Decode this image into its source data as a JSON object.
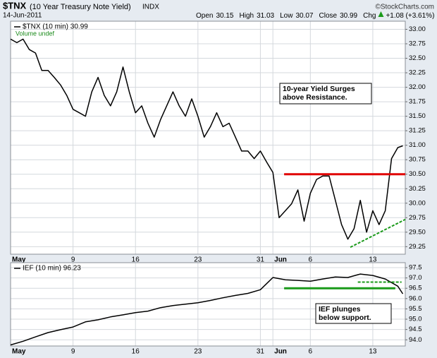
{
  "header": {
    "symbol": "$TNX",
    "name": "(10 Year Treasury Note Yield)",
    "exchange": "INDX",
    "copyright": "©StockCharts.com",
    "date": "14-Jun-2011",
    "stats": [
      {
        "label": "Open",
        "value": "30.15"
      },
      {
        "label": "High",
        "value": "31.03"
      },
      {
        "label": "Low",
        "value": "30.07"
      },
      {
        "label": "Close",
        "value": "30.99"
      },
      {
        "label": "Chg",
        "value": "+1.08 (+3.61%)"
      }
    ]
  },
  "chart_data": [
    {
      "type": "line",
      "x": [
        0,
        0.5,
        1,
        1.5,
        2,
        2.5,
        3,
        3.5,
        4,
        4.5,
        5,
        5.5,
        6,
        6.5,
        7,
        7.5,
        8,
        8.5,
        9,
        9.5,
        10,
        10.5,
        11,
        11.5,
        12,
        12.5,
        13,
        13.5,
        14,
        14.5,
        15,
        15.5,
        16,
        16.5,
        17,
        17.5,
        18,
        18.5,
        19,
        19.5,
        20,
        20.5,
        21,
        21.5,
        22,
        22.5,
        23,
        23.5,
        24,
        24.5,
        25,
        25.5,
        26,
        26.5,
        27,
        27.5,
        28,
        28.5,
        29,
        29.5,
        30,
        30.5,
        31,
        31.4
      ],
      "series": [
        {
          "name": "$TNX (10 min) 30.99",
          "color": "#000000",
          "values": [
            32.83,
            32.77,
            32.83,
            32.65,
            32.59,
            32.29,
            32.29,
            32.17,
            32.04,
            31.86,
            31.62,
            31.56,
            31.5,
            31.92,
            32.17,
            31.86,
            31.68,
            31.92,
            32.35,
            31.92,
            31.56,
            31.68,
            31.38,
            31.14,
            31.44,
            31.68,
            31.92,
            31.68,
            31.5,
            31.8,
            31.5,
            31.14,
            31.32,
            31.56,
            31.32,
            31.38,
            31.14,
            30.9,
            30.9,
            30.77,
            30.9,
            30.71,
            30.53,
            29.75,
            29.87,
            29.99,
            30.23,
            29.69,
            30.17,
            30.41,
            30.47,
            30.47,
            30.05,
            29.63,
            29.38,
            29.56,
            30.05,
            29.5,
            29.87,
            29.63,
            29.87,
            30.77,
            30.96,
            30.99
          ]
        }
      ],
      "legend_note": "Volume undef",
      "xlim": [
        0,
        31.6
      ],
      "ylim": [
        29.12,
        33.14
      ],
      "xticks": [
        {
          "value": 0,
          "label": "May"
        },
        {
          "value": 5,
          "label": "9"
        },
        {
          "value": 10,
          "label": "16"
        },
        {
          "value": 15,
          "label": "23"
        },
        {
          "value": 20,
          "label": "31"
        },
        {
          "value": 21,
          "label": "Jun"
        },
        {
          "value": 24,
          "label": "6"
        },
        {
          "value": 29,
          "label": "13"
        }
      ],
      "yticks": [
        {
          "value": 33,
          "label": "33.00"
        },
        {
          "value": 32.75,
          "label": "32.75"
        },
        {
          "value": 32.5,
          "label": "32.50"
        },
        {
          "value": 32.25,
          "label": "32.25"
        },
        {
          "value": 32,
          "label": "32.00"
        },
        {
          "value": 31.75,
          "label": "31.75"
        },
        {
          "value": 31.5,
          "label": "31.50"
        },
        {
          "value": 31.25,
          "label": "31.25"
        },
        {
          "value": 31,
          "label": "31.00"
        },
        {
          "value": 30.75,
          "label": "30.75"
        },
        {
          "value": 30.5,
          "label": "30.50"
        },
        {
          "value": 30.25,
          "label": "30.25"
        },
        {
          "value": 30,
          "label": "30.00"
        },
        {
          "value": 29.75,
          "label": "29.75"
        },
        {
          "value": 29.5,
          "label": "29.50"
        },
        {
          "value": 29.25,
          "label": "29.25"
        }
      ],
      "grid": true,
      "lines": [
        {
          "x": [
            21.9,
            31.6
          ],
          "y": [
            30.5,
            30.5
          ],
          "color": "#e00000",
          "style": "solid"
        },
        {
          "x": [
            27.2,
            31.6
          ],
          "y": [
            29.24,
            29.72
          ],
          "color": "#1a9a1a",
          "style": "dashed"
        }
      ],
      "annotation": [
        "10-year Yield Surges",
        "above Resistance."
      ]
    },
    {
      "type": "line",
      "x": [
        0,
        1,
        2,
        3,
        4,
        5,
        6,
        7,
        8,
        9,
        10,
        11,
        12,
        13,
        14,
        15,
        16,
        17,
        18,
        19,
        20,
        21,
        22,
        23,
        24,
        25,
        26,
        27,
        28,
        29,
        30,
        31,
        31.4
      ],
      "series": [
        {
          "name": "IEF (10 min) 96.23",
          "color": "#000000",
          "values": [
            93.75,
            93.93,
            94.14,
            94.35,
            94.49,
            94.62,
            94.87,
            94.97,
            95.11,
            95.21,
            95.32,
            95.39,
            95.56,
            95.66,
            95.73,
            95.8,
            95.91,
            96.04,
            96.15,
            96.25,
            96.43,
            97.02,
            96.91,
            96.88,
            96.84,
            96.95,
            97.05,
            97.02,
            97.19,
            97.12,
            96.95,
            96.6,
            96.23
          ]
        }
      ],
      "xlim": [
        0,
        31.6
      ],
      "ylim": [
        93.7,
        97.74
      ],
      "xticks": [
        {
          "value": 0,
          "label": "May"
        },
        {
          "value": 5,
          "label": "9"
        },
        {
          "value": 10,
          "label": "16"
        },
        {
          "value": 15,
          "label": "23"
        },
        {
          "value": 20,
          "label": "31"
        },
        {
          "value": 21,
          "label": "Jun"
        },
        {
          "value": 24,
          "label": "6"
        },
        {
          "value": 29,
          "label": "13"
        }
      ],
      "yticks": [
        97.5,
        {
          "value": 97,
          "label": "97.0"
        },
        96.5,
        {
          "value": 96,
          "label": "96.0"
        },
        95.5,
        {
          "value": 95,
          "label": "95.0"
        },
        94.5,
        {
          "value": 94,
          "label": "94.0"
        }
      ],
      "grid": true,
      "lines": [
        {
          "x": [
            21.9,
            30.8
          ],
          "y": [
            96.5,
            96.5
          ],
          "color": "#1a9a1a",
          "style": "solid"
        },
        {
          "x": [
            27.8,
            31.3
          ],
          "y": [
            96.8,
            96.8
          ],
          "color": "#1a9a1a",
          "style": "dashed"
        }
      ],
      "annotation": [
        "IEF plunges",
        "below support."
      ]
    }
  ]
}
